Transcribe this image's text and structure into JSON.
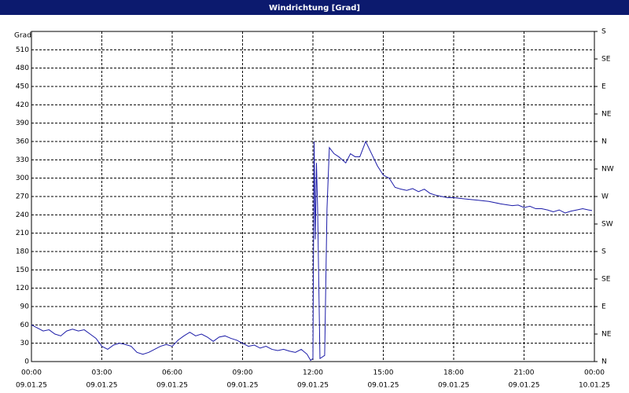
{
  "chart_data": {
    "type": "line",
    "title": "Windrichtung [Grad]",
    "y_label": "Grad",
    "x": [
      0,
      0.25,
      0.5,
      0.75,
      1,
      1.25,
      1.5,
      1.75,
      2,
      2.25,
      2.5,
      2.75,
      3,
      3.25,
      3.5,
      3.75,
      4,
      4.25,
      4.5,
      4.75,
      5,
      5.25,
      5.5,
      5.75,
      6,
      6.25,
      6.5,
      6.75,
      7,
      7.25,
      7.5,
      7.75,
      8,
      8.25,
      8.5,
      8.75,
      9,
      9.25,
      9.5,
      9.75,
      10,
      10.25,
      10.5,
      10.75,
      11,
      11.25,
      11.5,
      11.75,
      11.9,
      12,
      12.05,
      12.1,
      12.15,
      12.2,
      12.3,
      12.5,
      12.6,
      12.7,
      12.9,
      13.1,
      13.4,
      13.6,
      13.8,
      14,
      14.25,
      14.5,
      14.75,
      15,
      15.25,
      15.5,
      15.75,
      16,
      16.25,
      16.5,
      16.75,
      17,
      17.25,
      17.5,
      17.75,
      18,
      18.5,
      19,
      19.5,
      20,
      20.5,
      20.75,
      21,
      21.25,
      21.5,
      21.75,
      22,
      22.25,
      22.5,
      22.75,
      23,
      23.25,
      23.5,
      23.75,
      23.9
    ],
    "series": [
      {
        "name": "Windrichtung",
        "color": "#1c1ca8",
        "values": [
          60,
          55,
          50,
          52,
          45,
          42,
          50,
          53,
          50,
          52,
          45,
          38,
          25,
          20,
          27,
          30,
          28,
          25,
          15,
          12,
          15,
          20,
          25,
          28,
          25,
          35,
          42,
          48,
          42,
          45,
          40,
          33,
          40,
          42,
          38,
          35,
          30,
          25,
          27,
          22,
          25,
          20,
          18,
          20,
          17,
          15,
          20,
          12,
          2,
          5,
          360,
          200,
          325,
          250,
          5,
          10,
          250,
          350,
          340,
          335,
          325,
          340,
          335,
          335,
          360,
          340,
          320,
          305,
          300,
          285,
          282,
          280,
          283,
          278,
          282,
          275,
          272,
          270,
          268,
          268,
          266,
          264,
          262,
          258,
          255,
          256,
          252,
          254,
          250,
          250,
          248,
          245,
          248,
          243,
          246,
          248,
          250,
          248,
          247
        ]
      }
    ],
    "xlim": [
      0,
      24
    ],
    "xticks": [
      {
        "value": 0,
        "label": "00:00"
      },
      {
        "value": 3,
        "label": "03:00"
      },
      {
        "value": 6,
        "label": "06:00"
      },
      {
        "value": 9,
        "label": "09:00"
      },
      {
        "value": 12,
        "label": "12:00"
      },
      {
        "value": 15,
        "label": "15:00"
      },
      {
        "value": 18,
        "label": "18:00"
      },
      {
        "value": 21,
        "label": "21:00"
      },
      {
        "value": 24,
        "label": "00:00"
      }
    ],
    "xtick_dates": [
      "09.01.25",
      "09.01.25",
      "09.01.25",
      "09.01.25",
      "09.01.25",
      "09.01.25",
      "09.01.25",
      "09.01.25",
      "10.01.25"
    ],
    "ylim": [
      0,
      540
    ],
    "yticks": [
      0,
      30,
      60,
      90,
      120,
      150,
      180,
      210,
      240,
      270,
      300,
      330,
      360,
      390,
      420,
      450,
      480,
      510
    ],
    "y2lim": [
      0,
      540
    ],
    "y2ticks": [
      {
        "value": 0,
        "label": "N"
      },
      {
        "value": 45,
        "label": "NE"
      },
      {
        "value": 90,
        "label": "E"
      },
      {
        "value": 135,
        "label": "SE"
      },
      {
        "value": 180,
        "label": "S"
      },
      {
        "value": 225,
        "label": "SW"
      },
      {
        "value": 270,
        "label": "W"
      },
      {
        "value": 315,
        "label": "NW"
      },
      {
        "value": 360,
        "label": "N"
      },
      {
        "value": 405,
        "label": "NE"
      },
      {
        "value": 450,
        "label": "E"
      },
      {
        "value": 495,
        "label": "SE"
      },
      {
        "value": 540,
        "label": "S"
      }
    ],
    "grid": true
  }
}
